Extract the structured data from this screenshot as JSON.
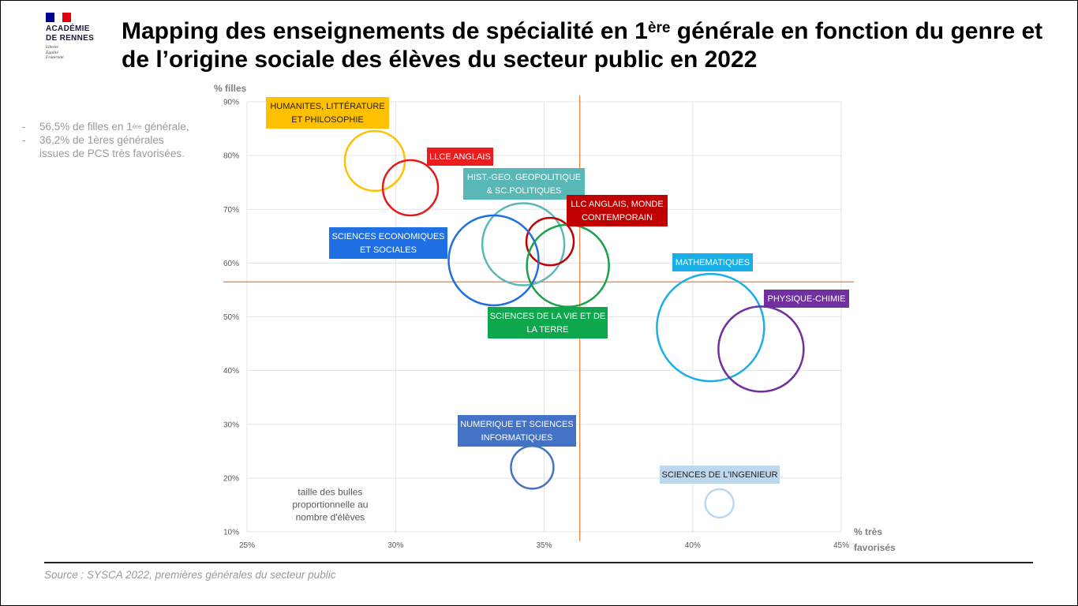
{
  "logo": {
    "name_line1": "ACADÉMIE",
    "name_line2": "DE RENNES",
    "motto": [
      "Liberté",
      "Égalité",
      "Fraternité"
    ],
    "flag_colors": [
      "#000091",
      "#ffffff",
      "#e1000f"
    ]
  },
  "title": {
    "part1": "Mapping des enseignements de spécialité en 1",
    "sup": "ère",
    "part2": " générale en fonction du genre et de l’origine sociale des élèves du secteur public en 2022"
  },
  "notes": {
    "dash": "-",
    "item1_part1": "56,5% de filles en 1",
    "item1_sup": "ère",
    "item1_part2": " générale,",
    "item2": "36,2% de 1ères générales issues de PCS très favorisées."
  },
  "source": "Source : SYSCA 2022, premières générales du secteur public",
  "chart_data": {
    "type": "scatter",
    "xlabel_lines": [
      "% très",
      "favorisés"
    ],
    "ylabel": "% filles",
    "xlim": [
      25,
      45
    ],
    "ylim": [
      10,
      90
    ],
    "x_ticks": [
      25,
      30,
      35,
      40,
      45
    ],
    "y_ticks": [
      10,
      20,
      30,
      40,
      50,
      60,
      70,
      80,
      90
    ],
    "x_tick_labels": [
      "25%",
      "30%",
      "35%",
      "40%",
      "45%"
    ],
    "y_tick_labels": [
      "10%",
      "20%",
      "30%",
      "40%",
      "50%",
      "60%",
      "70%",
      "80%",
      "90%"
    ],
    "grid": true,
    "reference_lines": {
      "x": 36.2,
      "y": 56.5,
      "color": "#ed7d31"
    },
    "size_note_lines": [
      "taille des bulles",
      "proportionnelle au",
      "nombre d'élèves"
    ],
    "series": [
      {
        "name": "HUMANITES, LITTÉRATURE ET PHILOSOPHIE",
        "label_lines": [
          "HUMANITES, LITTÉRATURE",
          "ET PHILOSOPHIE"
        ],
        "x": 29.3,
        "y": 79,
        "size": 0.38,
        "color": "#ffc000",
        "label_bg": "#ffc000",
        "label_fg": "#222222"
      },
      {
        "name": "LLCE ANGLAIS",
        "label_lines": [
          "LLCE ANGLAIS"
        ],
        "x": 30.5,
        "y": 74,
        "size": 0.35,
        "color": "#e31a1c",
        "label_bg": "#ee1c1c",
        "label_fg": "#ffffff"
      },
      {
        "name": "HIST.-GEO. GEOPOLITIQUE & SC.POLITIQUES",
        "label_lines": [
          "HIST.-GEO. GEOPOLITIQUE",
          "& SC.POLITIQUES"
        ],
        "x": 34.3,
        "y": 63.5,
        "size": 0.52,
        "color": "#5ab8b8",
        "label_bg": "#59b8b6",
        "label_fg": "#ffffff"
      },
      {
        "name": "LLC ANGLAIS, MONDE CONTEMPORAIN",
        "label_lines": [
          "LLC ANGLAIS, MONDE",
          "CONTEMPORAIN"
        ],
        "x": 35.2,
        "y": 64,
        "size": 0.3,
        "color": "#c00000",
        "label_bg": "#c00000",
        "label_fg": "#ffffff"
      },
      {
        "name": "SCIENCES ECONOMIQUES ET SOCIALES",
        "label_lines": [
          "SCIENCES ECONOMIQUES",
          "ET SOCIALES"
        ],
        "x": 33.3,
        "y": 60.5,
        "size": 0.57,
        "color": "#1f6fe0",
        "label_bg": "#1f6fe5",
        "label_fg": "#ffffff"
      },
      {
        "name": "SCIENCES DE LA VIE ET DE LA TERRE",
        "label_lines": [
          "SCIENCES DE LA VIE ET DE",
          "LA TERRE"
        ],
        "x": 35.8,
        "y": 59.5,
        "size": 0.52,
        "color": "#17a34a",
        "label_bg": "#0ea74d",
        "label_fg": "#ffffff"
      },
      {
        "name": "MATHEMATIQUES",
        "label_lines": [
          "MATHEMATIQUES"
        ],
        "x": 40.6,
        "y": 48,
        "size": 0.68,
        "color": "#1aaee6",
        "label_bg": "#1aaee6",
        "label_fg": "#ffffff"
      },
      {
        "name": "PHYSIQUE-CHIMIE",
        "label_lines": [
          "PHYSIQUE-CHIMIE"
        ],
        "x": 42.3,
        "y": 44,
        "size": 0.54,
        "color": "#7030a0",
        "label_bg": "#7030a0",
        "label_fg": "#ffffff"
      },
      {
        "name": "NUMERIQUE ET SCIENCES INFORMATIQUES",
        "label_lines": [
          "NUMERIQUE ET SCIENCES",
          "INFORMATIQUES"
        ],
        "x": 34.6,
        "y": 22,
        "size": 0.27,
        "color": "#4472c4",
        "label_bg": "#4472c4",
        "label_fg": "#ffffff"
      },
      {
        "name": "SCIENCES DE L'INGENIEUR",
        "label_lines": [
          "SCIENCES DE L'INGENIEUR"
        ],
        "x": 40.9,
        "y": 15.3,
        "size": 0.18,
        "color": "#bdd7ee",
        "label_bg": "#bdd7ee",
        "label_fg": "#222222"
      }
    ]
  }
}
